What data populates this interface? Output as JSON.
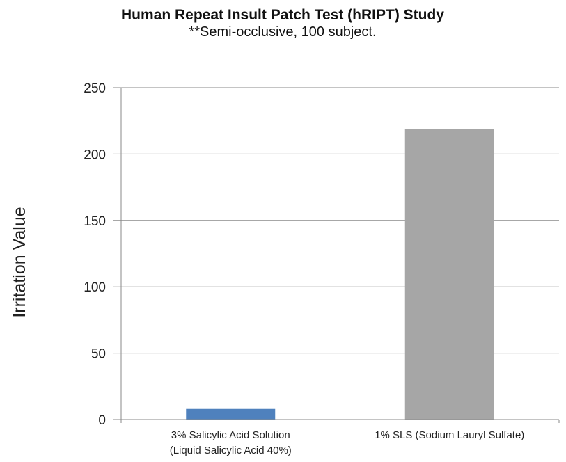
{
  "chart_data": {
    "type": "bar",
    "title": "Human Repeat Insult Patch Test (hRIPT) Study",
    "subtitle": "**Semi-occlusive, 100 subject.",
    "ylabel": "Irritation Value",
    "xlabel": "",
    "ylim": [
      0,
      250
    ],
    "yticks": [
      0,
      50,
      100,
      150,
      200,
      250
    ],
    "grid": true,
    "categories": [
      [
        "3% Salicylic Acid Solution",
        "(Liquid Salicylic Acid 40%)"
      ],
      [
        "1% SLS (Sodium Lauryl Sulfate)"
      ]
    ],
    "values": [
      8,
      219
    ],
    "colors": [
      "#4f81bd",
      "#a6a6a6"
    ]
  }
}
